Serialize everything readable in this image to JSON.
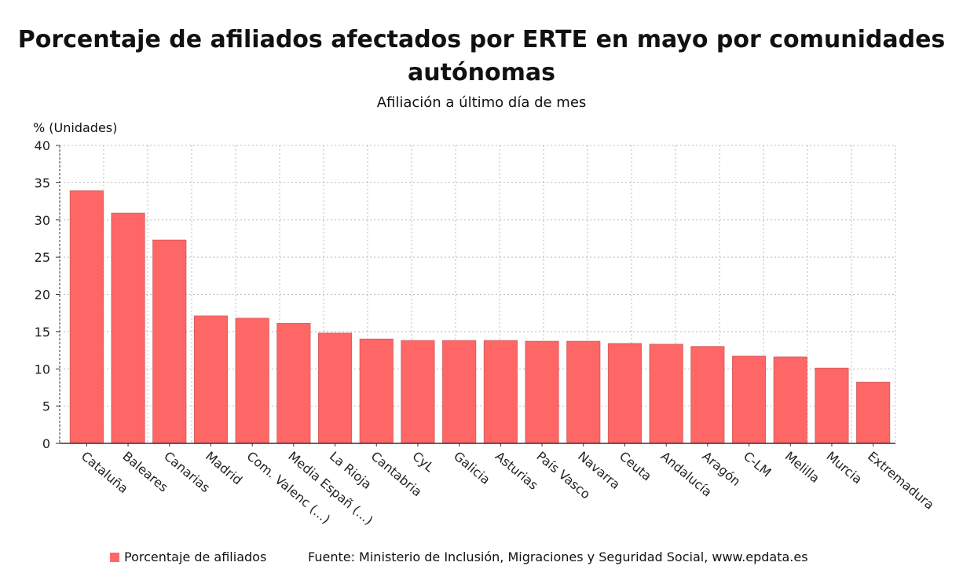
{
  "chart_data": {
    "type": "bar",
    "title": "Porcentaje de afiliados afectados por ERTE en mayo por comunidades autónomas",
    "subtitle": "Afiliación a último día de mes",
    "ylabel": "% (Unidades)",
    "xlabel": "",
    "ylim": [
      0,
      40
    ],
    "yticks": [
      "0",
      "5",
      "10",
      "15",
      "20",
      "25",
      "30",
      "35",
      "40"
    ],
    "grid": true,
    "bar_color": "#ff6666",
    "categories": [
      "Cataluña",
      "Baleares",
      "Canarias",
      "Madrid",
      "Com. Valenc (...)",
      "Media Españ (...)",
      "La Rioja",
      "Cantabria",
      "CyL",
      "Galicia",
      "Asturias",
      "País Vasco",
      "Navarra",
      "Ceuta",
      "Andalucía",
      "Aragón",
      "C-LM",
      "Melilla",
      "Murcia",
      "Extremadura"
    ],
    "series": [
      {
        "name": "Porcentaje de afiliados",
        "values": [
          33.9,
          30.9,
          27.3,
          17.1,
          16.8,
          16.1,
          14.8,
          14.0,
          13.8,
          13.8,
          13.8,
          13.7,
          13.7,
          13.4,
          13.3,
          13.0,
          11.7,
          11.6,
          10.1,
          8.2
        ]
      }
    ],
    "legend_position": "bottom-left",
    "source": "Fuente: Ministerio de Inclusión, Migraciones y Seguridad Social, www.epdata.es"
  }
}
